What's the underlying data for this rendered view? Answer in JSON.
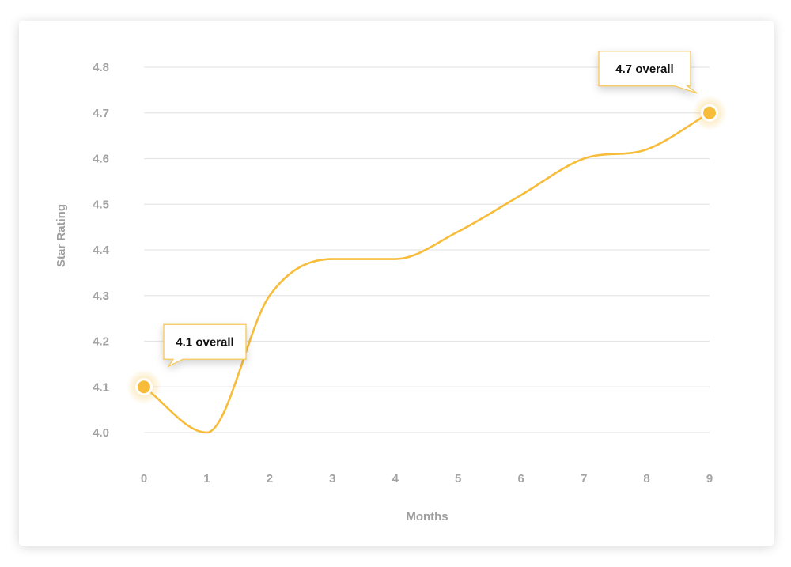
{
  "chart_data": {
    "type": "line",
    "x": [
      0,
      1,
      2,
      3,
      4,
      5,
      6,
      7,
      8,
      9
    ],
    "series": [
      {
        "values": [
          4.1,
          4.0,
          4.3,
          4.38,
          4.38,
          4.44,
          4.52,
          4.6,
          4.62,
          4.7
        ],
        "color": "#f7bd3a"
      }
    ],
    "xlabel": "Months",
    "ylabel": "Star Rating",
    "ylim": [
      4.0,
      4.8
    ],
    "xlim": [
      0,
      9
    ],
    "yticks": [
      "4.0",
      "4.1",
      "4.2",
      "4.3",
      "4.4",
      "4.5",
      "4.6",
      "4.7",
      "4.8"
    ],
    "xticks": [
      "0",
      "1",
      "2",
      "3",
      "4",
      "5",
      "6",
      "7",
      "8",
      "9"
    ],
    "grid": true,
    "annotations": [
      {
        "x": 0,
        "y": 4.1,
        "text": "4.1 overall"
      },
      {
        "x": 9,
        "y": 4.7,
        "text": "4.7 overall"
      }
    ],
    "accent_color": "#f7bd3a",
    "callout_border_color": "#f5c75a"
  }
}
